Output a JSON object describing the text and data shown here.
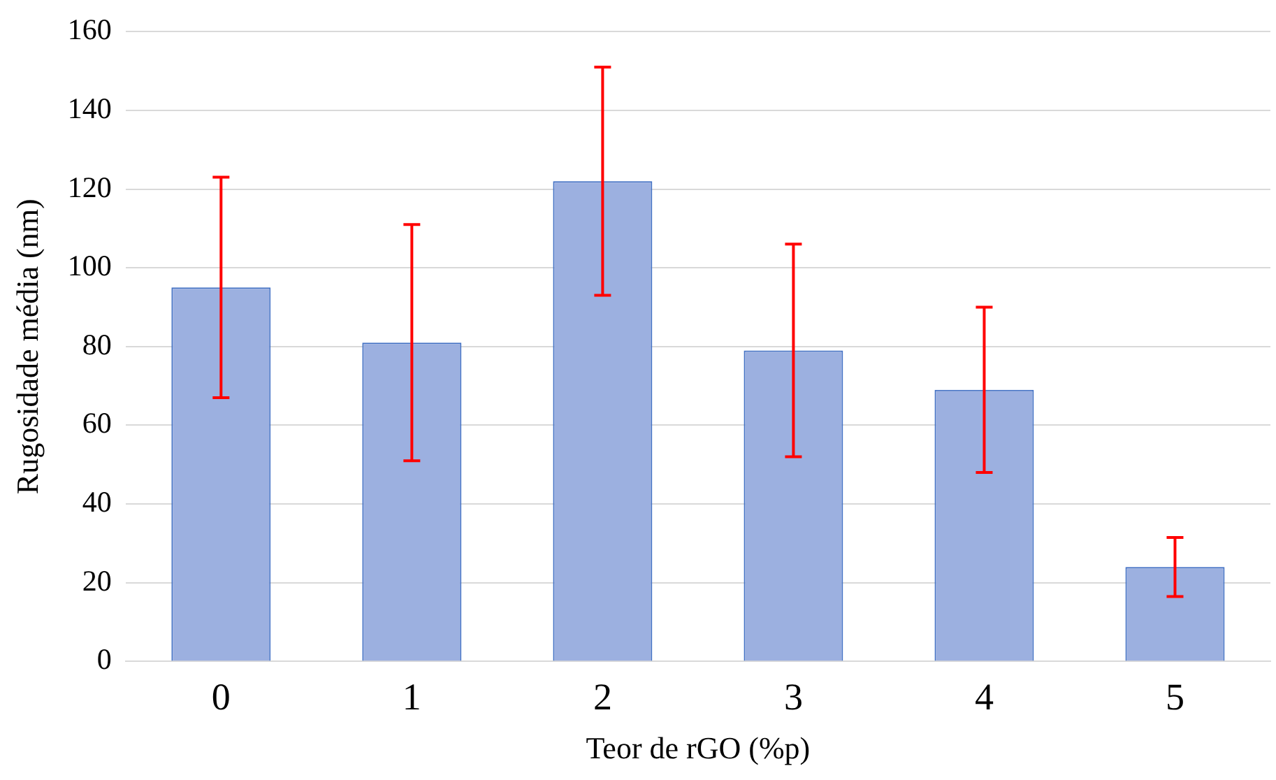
{
  "chart_data": {
    "type": "bar",
    "xlabel": "Teor de rGO (%p)",
    "ylabel": "Rugosidade média (nm)",
    "categories": [
      "0",
      "1",
      "2",
      "3",
      "4",
      "5"
    ],
    "values": [
      95,
      81,
      122,
      79,
      69,
      24
    ],
    "errors": [
      28,
      30,
      29,
      27,
      21,
      7.5
    ],
    "color": "#9cb0e0",
    "ylim": [
      0,
      160
    ],
    "yticks": [
      0,
      20,
      40,
      60,
      80,
      100,
      120,
      140,
      160
    ],
    "grid": "y",
    "legend": false
  }
}
